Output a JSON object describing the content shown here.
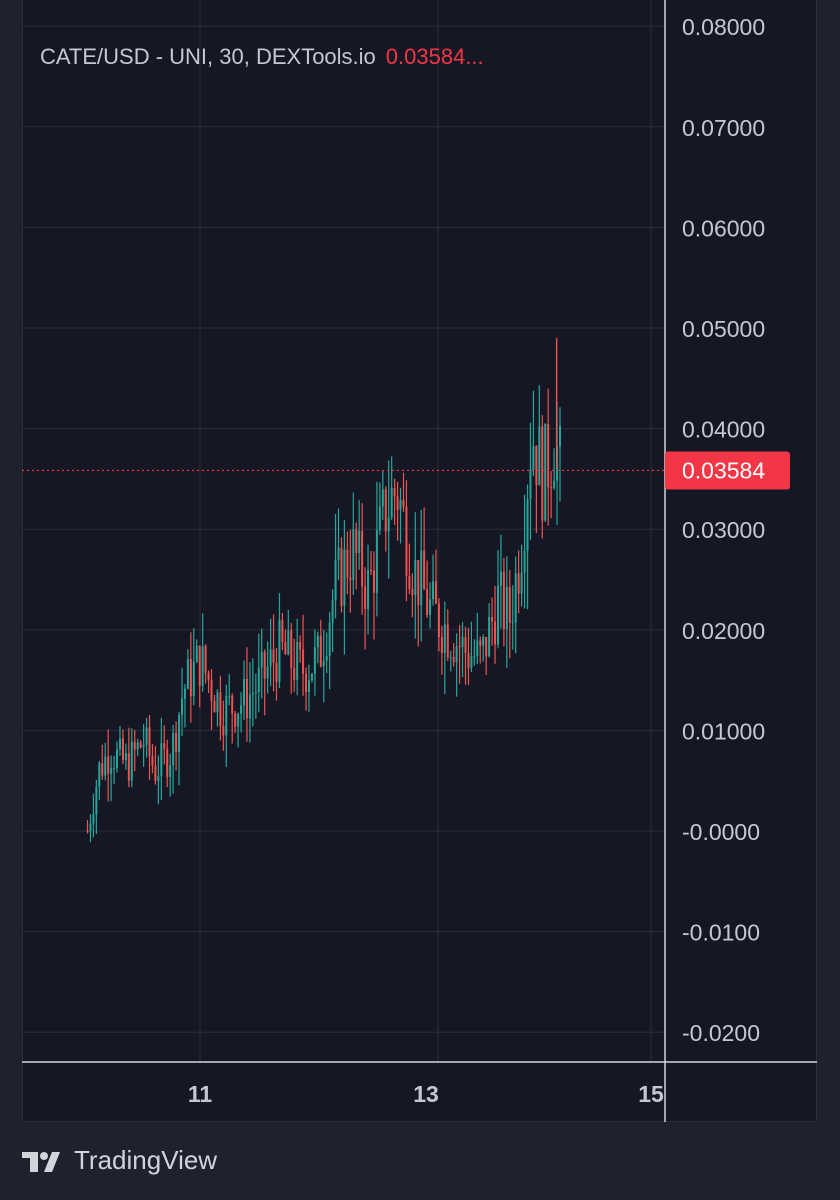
{
  "header": {
    "title": "CATE/USD - UNI, 30, DEXTools.io",
    "last_value": "0.03584..."
  },
  "brand": {
    "name": "TradingView"
  },
  "price_tag": {
    "value": "0.03584"
  },
  "colors": {
    "up": "#26a69a",
    "down": "#ef5350",
    "last_price": "#f23645",
    "grid": "#2a2e39",
    "text": "#c5c8d0",
    "background": "#151824"
  },
  "chart_data": {
    "type": "candlestick",
    "title": "CATE/USD - UNI, 30, DEXTools.io",
    "interval": "30",
    "y_ticks": [
      "0.08000",
      "0.07000",
      "0.06000",
      "0.05000",
      "0.04000",
      "0.03000",
      "0.02000",
      "0.01000",
      "-0.0000",
      "-0.0100",
      "-0.0200"
    ],
    "y_tick_values": [
      0.08,
      0.07,
      0.06,
      0.05,
      0.04,
      0.03,
      0.02,
      0.01,
      0,
      -0.01,
      -0.02
    ],
    "x_ticks": [
      "11",
      "13",
      "15"
    ],
    "x_tick_values": [
      11,
      13,
      15
    ],
    "ylim": [
      -0.0225,
      0.0815
    ],
    "xlim": [
      9.4,
      15.1
    ],
    "last_price": 0.03584,
    "grid": true,
    "price_keypoints": [
      [
        10.0,
        0.0
      ],
      [
        10.1,
        0.006
      ],
      [
        10.2,
        0.008
      ],
      [
        10.35,
        0.0065
      ],
      [
        10.5,
        0.009
      ],
      [
        10.6,
        0.006
      ],
      [
        10.75,
        0.008
      ],
      [
        10.85,
        0.014
      ],
      [
        11.0,
        0.017
      ],
      [
        11.2,
        0.012
      ],
      [
        11.4,
        0.013
      ],
      [
        11.55,
        0.015
      ],
      [
        11.7,
        0.018
      ],
      [
        11.9,
        0.016
      ],
      [
        12.05,
        0.017
      ],
      [
        12.2,
        0.024
      ],
      [
        12.35,
        0.028
      ],
      [
        12.5,
        0.024
      ],
      [
        12.65,
        0.032
      ],
      [
        12.75,
        0.034
      ],
      [
        12.9,
        0.026
      ],
      [
        13.05,
        0.022
      ],
      [
        13.2,
        0.02
      ],
      [
        13.35,
        0.018
      ],
      [
        13.5,
        0.017
      ],
      [
        13.65,
        0.023
      ],
      [
        13.75,
        0.021
      ],
      [
        13.85,
        0.028
      ],
      [
        13.95,
        0.04
      ],
      [
        14.05,
        0.035
      ],
      [
        14.15,
        0.039
      ],
      [
        14.2,
        0.036
      ]
    ]
  }
}
